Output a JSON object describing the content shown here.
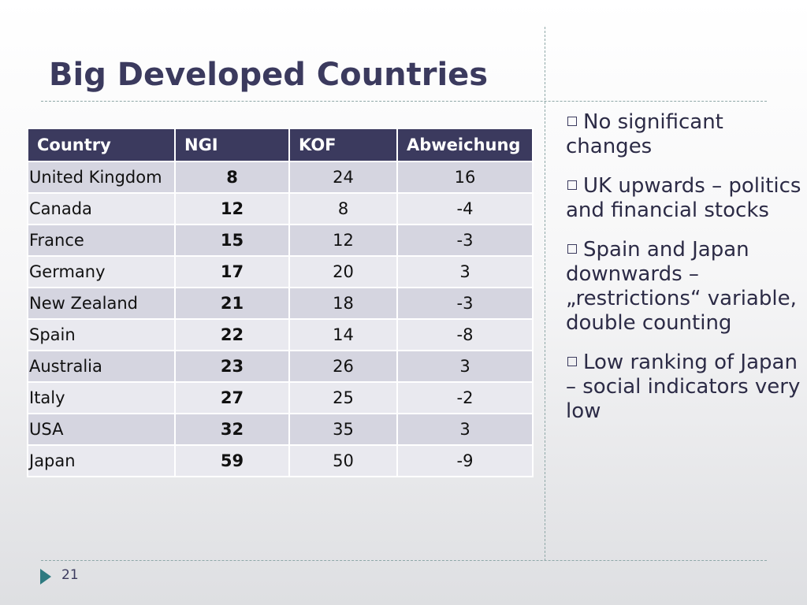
{
  "slide": {
    "title": "Big Developed Countries",
    "page_number": "21"
  },
  "table": {
    "headers": [
      "Country",
      "NGI",
      "KOF",
      "Abweichung"
    ],
    "rows": [
      [
        "United Kingdom",
        "8",
        "24",
        "16"
      ],
      [
        "Canada",
        "12",
        "8",
        "-4"
      ],
      [
        "France",
        "15",
        "12",
        "-3"
      ],
      [
        "Germany",
        "17",
        "20",
        "3"
      ],
      [
        "New Zealand",
        "21",
        "18",
        "-3"
      ],
      [
        "Spain",
        "22",
        "14",
        "-8"
      ],
      [
        "Australia",
        "23",
        "26",
        "3"
      ],
      [
        "Italy",
        "27",
        "25",
        "-2"
      ],
      [
        "USA",
        "32",
        "35",
        "3"
      ],
      [
        "Japan",
        "59",
        "50",
        "-9"
      ]
    ]
  },
  "bullets": [
    "No significant changes",
    "UK upwards – politics and financial stocks",
    "Spain  and Japan downwards – „restrictions“ variable, double counting",
    "Low ranking of Japan – social indicators very low"
  ],
  "colors": {
    "accent": "#3b3a5e",
    "row_odd": "#d5d5e0",
    "row_even": "#e9e9ef",
    "arrow": "#2e7a80",
    "divider": "#8fa8a8"
  }
}
